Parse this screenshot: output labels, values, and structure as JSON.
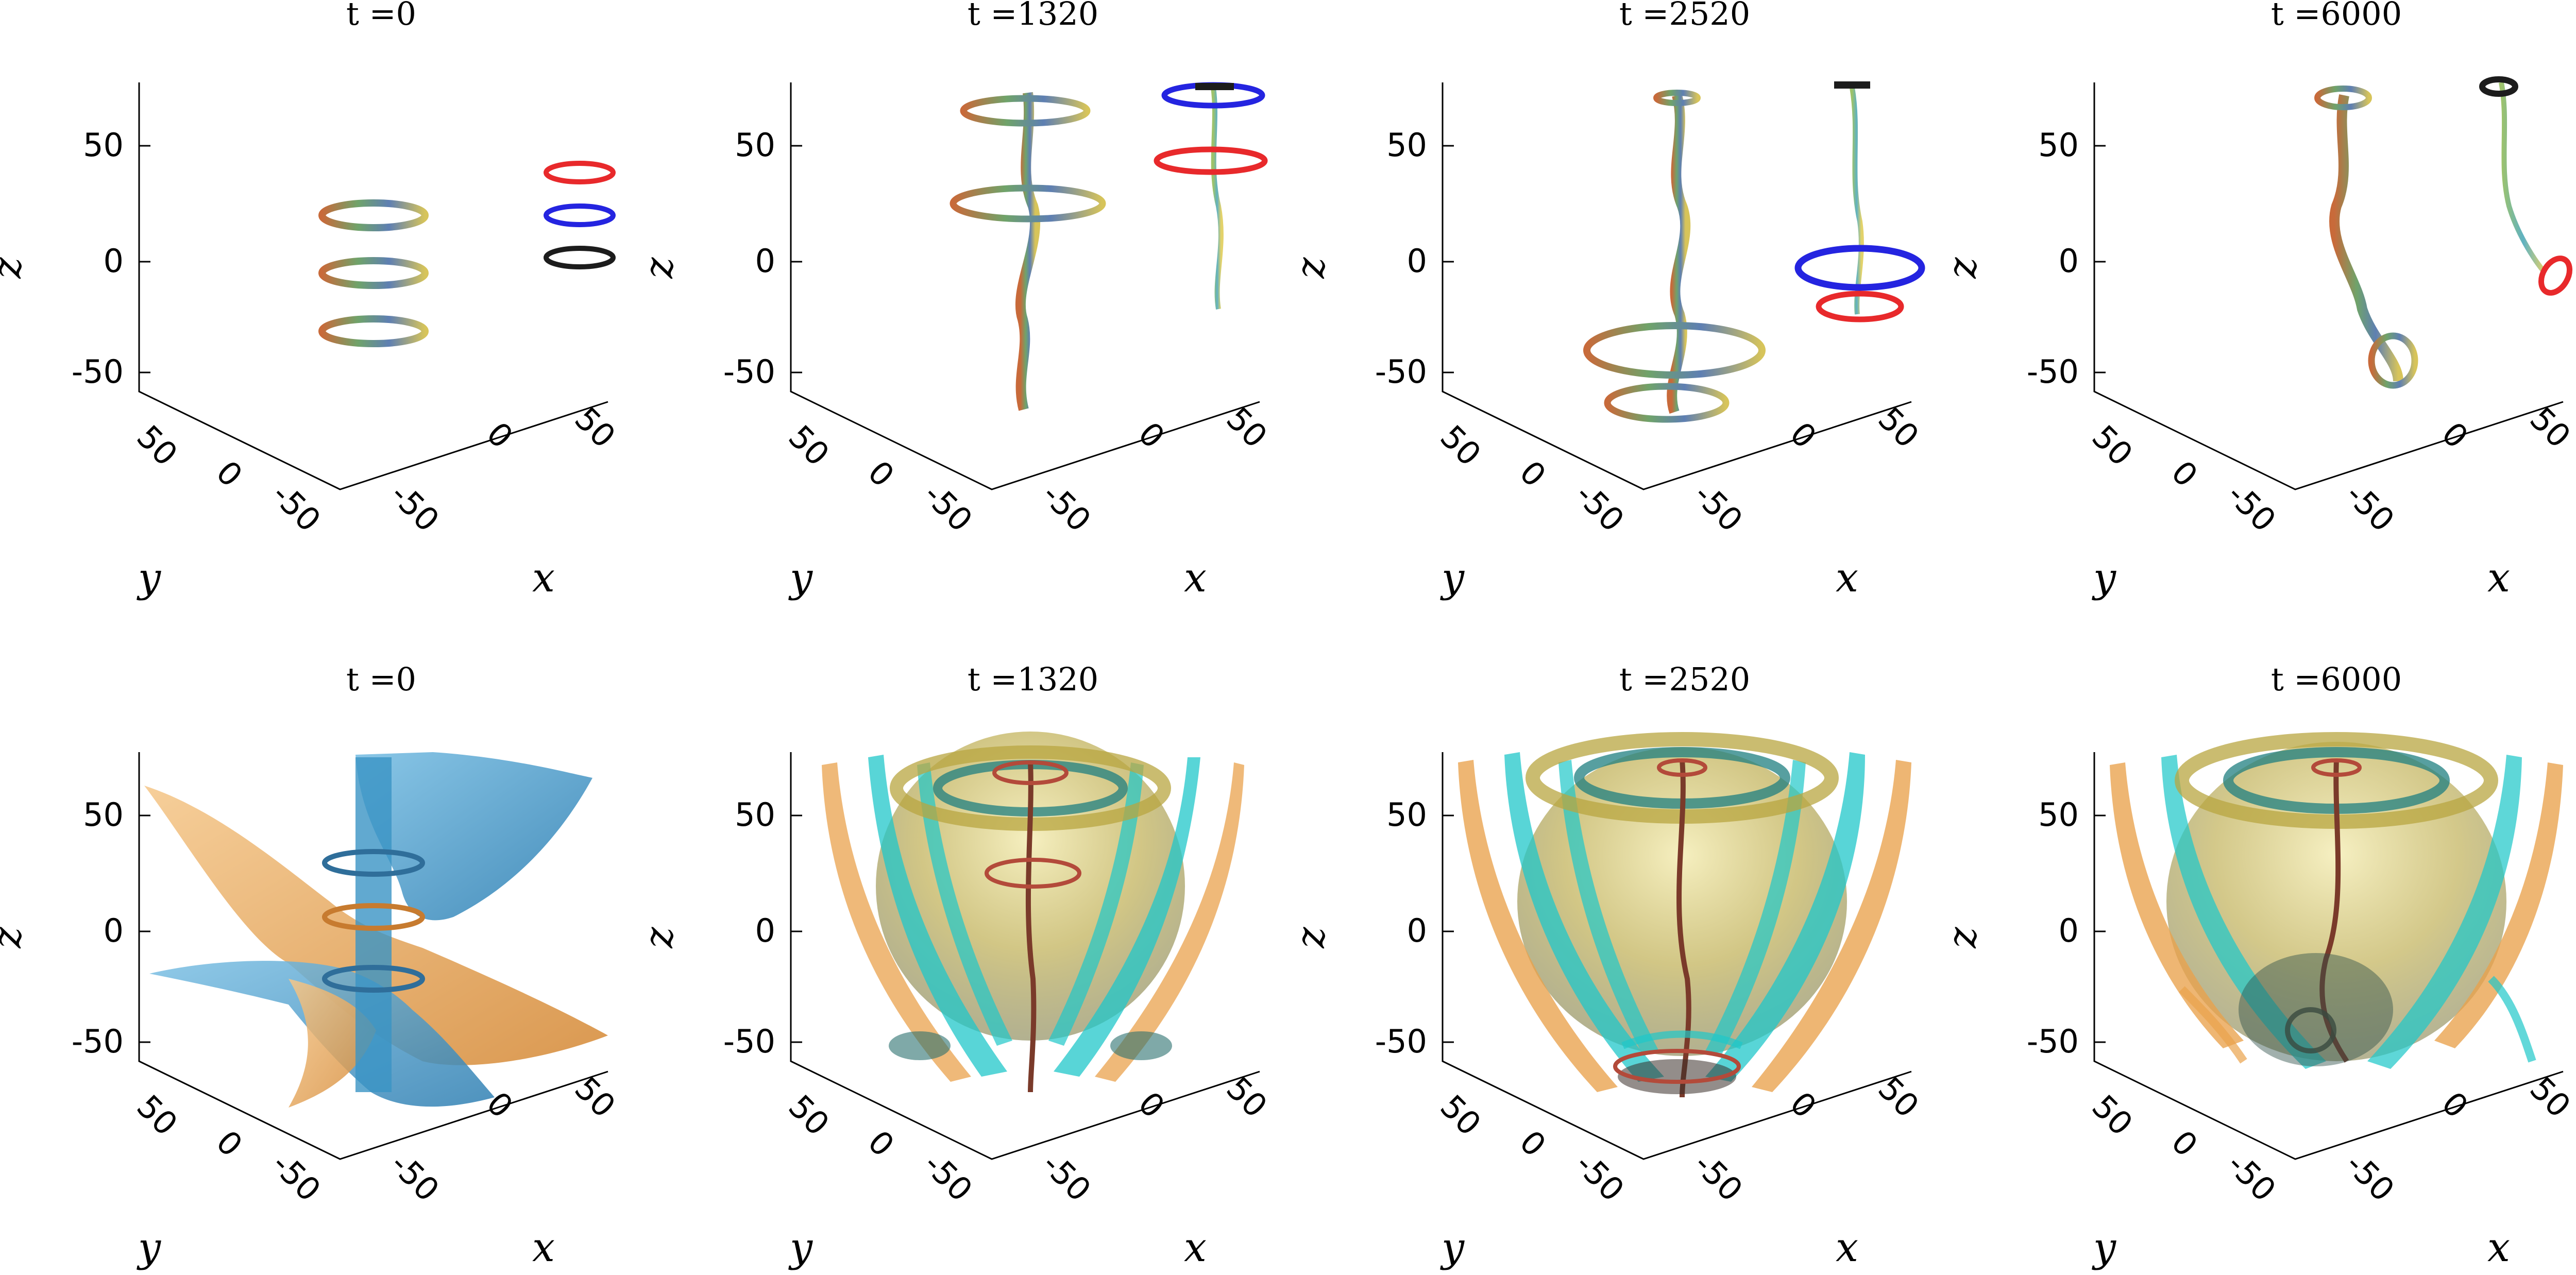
{
  "figure": {
    "rows": [
      {
        "kind": "vortex-lines",
        "panels": [
          {
            "title": "t =0"
          },
          {
            "title": "t =1320"
          },
          {
            "title": "t =2520"
          },
          {
            "title": "t =6000"
          }
        ]
      },
      {
        "kind": "isosurfaces",
        "panels": [
          {
            "title": "t =0"
          },
          {
            "title": "t =1320"
          },
          {
            "title": "t =2520"
          },
          {
            "title": "t =6000"
          }
        ]
      }
    ],
    "axes": {
      "x_label": "x",
      "y_label": "y",
      "z_label": "z",
      "z_ticks": [
        "50",
        "0",
        "-50"
      ],
      "y_ticks": [
        "50",
        "0",
        "-50"
      ],
      "x_ticks": [
        "-50",
        "0",
        "50"
      ]
    },
    "ring_colors": {
      "ring_1": "#e8292b",
      "ring_2": "#2424e0",
      "ring_3": "#1c1c1c"
    },
    "surface_colors": {
      "blue": "#3a93c4",
      "orange": "#e9a24c",
      "cyan": "#20c7c9",
      "olive": "#b8a640"
    }
  }
}
